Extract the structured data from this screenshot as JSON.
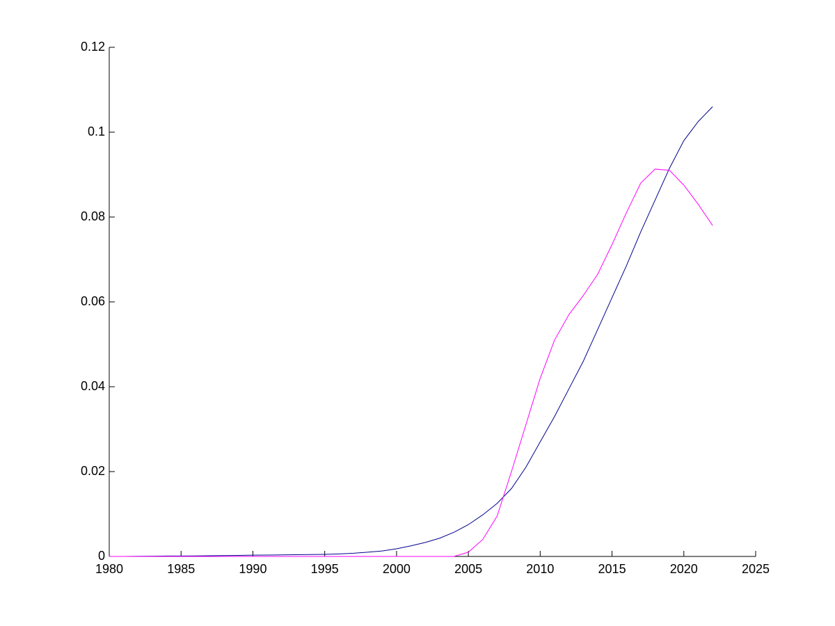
{
  "chart_data": {
    "type": "line",
    "x": [
      1980,
      1981,
      1982,
      1983,
      1984,
      1985,
      1986,
      1987,
      1988,
      1989,
      1990,
      1991,
      1992,
      1993,
      1994,
      1995,
      1996,
      1997,
      1998,
      1999,
      2000,
      2001,
      2002,
      2003,
      2004,
      2005,
      2006,
      2007,
      2008,
      2009,
      2010,
      2011,
      2012,
      2013,
      2014,
      2015,
      2016,
      2017,
      2018,
      2019,
      2020,
      2021,
      2022
    ],
    "series": [
      {
        "color": "#00008b",
        "values": [
          0,
          0,
          5e-05,
          7e-05,
          0.0001,
          0.0001,
          0.00013,
          0.00016,
          0.0002,
          0.00025,
          0.0003,
          0.00033,
          0.00036,
          0.0004,
          0.00045,
          0.0005,
          0.0006,
          0.00075,
          0.001,
          0.0013,
          0.0018,
          0.0025,
          0.0033,
          0.0043,
          0.0057,
          0.0075,
          0.0098,
          0.0125,
          0.016,
          0.021,
          0.027,
          0.033,
          0.0395,
          0.046,
          0.0535,
          0.061,
          0.0685,
          0.0765,
          0.084,
          0.0915,
          0.098,
          0.1025,
          0.106
        ]
      },
      {
        "color": "#ff00ff",
        "values": [
          0,
          0,
          0,
          0,
          0,
          0,
          0,
          0,
          0,
          0,
          0,
          0,
          0,
          0,
          0,
          0,
          0,
          0,
          0,
          0,
          0,
          0,
          0,
          0,
          0,
          0.001,
          0.004,
          0.0095,
          0.02,
          0.031,
          0.042,
          0.051,
          0.057,
          0.0615,
          0.0665,
          0.0735,
          0.081,
          0.088,
          0.0913,
          0.091,
          0.0875,
          0.083,
          0.078
        ]
      }
    ],
    "xlim": [
      1980,
      2025
    ],
    "xticks": [
      1980,
      1985,
      1990,
      1995,
      2000,
      2005,
      2010,
      2015,
      2020,
      2025
    ],
    "ylim": [
      0,
      0.12
    ],
    "yticks": [
      0,
      0.02,
      0.04,
      0.06,
      0.08,
      0.1,
      0.12
    ]
  }
}
